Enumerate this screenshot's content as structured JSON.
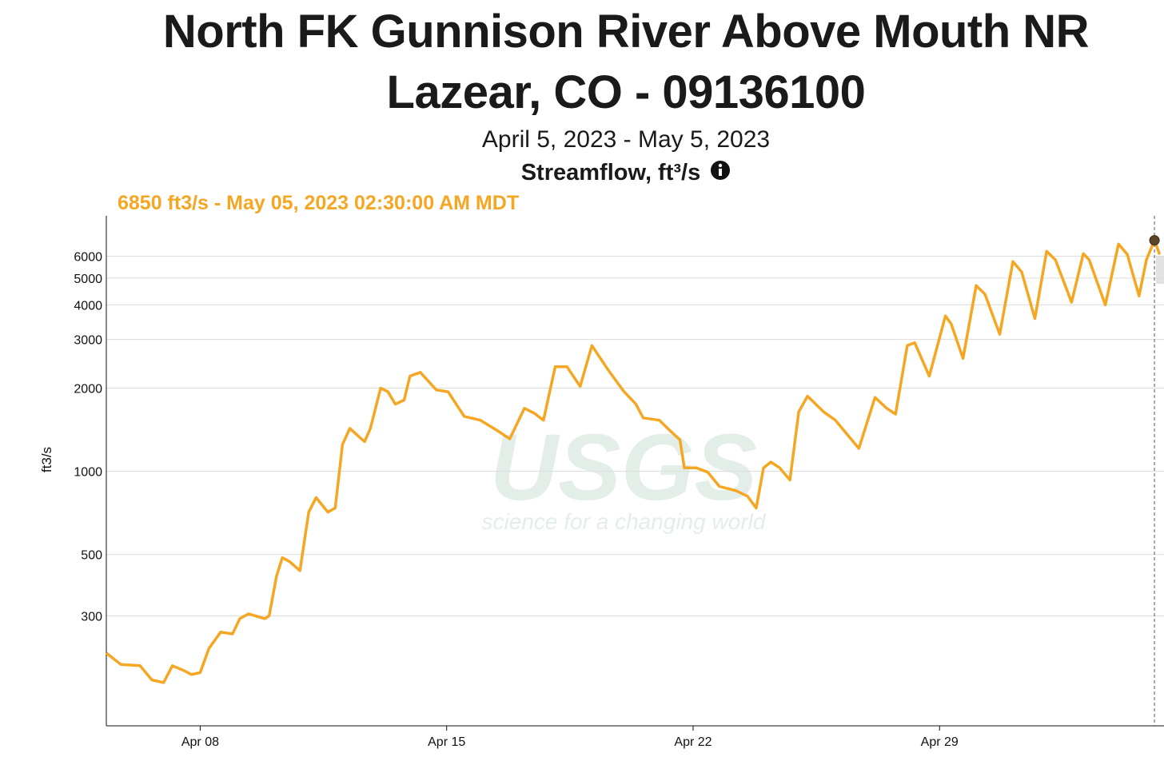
{
  "chart_data": {
    "type": "line",
    "title": "North FK Gunnison River Above Mouth NR Lazear, CO - 09136100",
    "subtitle": "April 5, 2023 - May 5, 2023",
    "parameter": "Streamflow, ft³/s",
    "y_label": "ft3/s",
    "watermark": {
      "name": "USGS",
      "tagline": "science for a changing world"
    },
    "color": "#f5a623",
    "log_scale": true,
    "grid": true,
    "x": [
      "2023-04-05T08:00",
      "2023-04-05T18:00",
      "2023-04-06T07:00",
      "2023-04-06T15:00",
      "2023-04-06T23:00",
      "2023-04-07T05:00",
      "2023-04-07T13:00",
      "2023-04-07T18:00",
      "2023-04-08T00:00",
      "2023-04-08T06:00",
      "2023-04-08T14:00",
      "2023-04-08T22:00",
      "2023-04-09T03:00",
      "2023-04-09T09:00",
      "2023-04-09T20:00",
      "2023-04-09T23:00",
      "2023-04-10T04:00",
      "2023-04-10T08:00",
      "2023-04-10T13:00",
      "2023-04-10T20:00",
      "2023-04-11T02:00",
      "2023-04-11T07:00",
      "2023-04-11T15:00",
      "2023-04-11T20:00",
      "2023-04-12T01:00",
      "2023-04-12T06:00",
      "2023-04-12T16:00",
      "2023-04-12T20:00",
      "2023-04-13T03:00",
      "2023-04-13T08:00",
      "2023-04-13T13:00",
      "2023-04-13T19:00",
      "2023-04-13T23:00",
      "2023-04-14T06:00",
      "2023-04-14T17:00",
      "2023-04-15T01:00",
      "2023-04-15T12:00",
      "2023-04-15T23:00",
      "2023-04-16T10:00",
      "2023-04-16T19:00",
      "2023-04-17T05:00",
      "2023-04-17T12:00",
      "2023-04-17T18:00",
      "2023-04-18T02:00",
      "2023-04-18T10:00",
      "2023-04-18T19:00",
      "2023-04-19T03:00",
      "2023-04-19T14:00",
      "2023-04-20T01:00",
      "2023-04-20T09:00",
      "2023-04-20T14:00",
      "2023-04-21T01:00",
      "2023-04-21T09:00",
      "2023-04-21T15:00",
      "2023-04-21T18:00",
      "2023-04-22T02:00",
      "2023-04-22T10:00",
      "2023-04-22T18:00",
      "2023-04-23T05:00",
      "2023-04-23T13:00",
      "2023-04-23T19:00",
      "2023-04-24T00:00",
      "2023-04-24T05:00",
      "2023-04-24T11:00",
      "2023-04-24T18:00",
      "2023-04-25T00:00",
      "2023-04-25T06:00",
      "2023-04-25T17:00",
      "2023-04-26T01:00",
      "2023-04-26T17:00",
      "2023-04-27T04:00",
      "2023-04-27T12:00",
      "2023-04-27T18:00",
      "2023-04-28T02:00",
      "2023-04-28T07:00",
      "2023-04-28T17:00",
      "2023-04-29T04:00",
      "2023-04-29T08:00",
      "2023-04-29T16:00",
      "2023-04-30T01:00",
      "2023-04-30T07:00",
      "2023-04-30T17:00",
      "2023-05-01T02:00",
      "2023-05-01T08:00",
      "2023-05-01T17:00",
      "2023-05-02T01:00",
      "2023-05-02T07:00",
      "2023-05-02T18:00",
      "2023-05-03T02:00",
      "2023-05-03T06:00",
      "2023-05-03T17:00",
      "2023-05-04T02:00",
      "2023-05-04T08:00",
      "2023-05-04T16:00",
      "2023-05-04T21:00",
      "2023-05-05T02:30",
      "2023-05-05T06:00"
    ],
    "values": [
      220,
      200,
      198,
      176,
      172,
      198,
      190,
      184,
      187,
      229,
      262,
      258,
      293,
      305,
      293,
      300,
      418,
      487,
      471,
      437,
      712,
      803,
      712,
      736,
      1250,
      1430,
      1280,
      1430,
      2000,
      1940,
      1750,
      1810,
      2210,
      2280,
      1970,
      1940,
      1580,
      1530,
      1410,
      1310,
      1690,
      1620,
      1530,
      2390,
      2390,
      2030,
      2850,
      2330,
      1940,
      1750,
      1560,
      1530,
      1390,
      1300,
      1030,
      1030,
      993,
      881,
      852,
      813,
      736,
      1030,
      1080,
      1030,
      930,
      1640,
      1870,
      1640,
      1530,
      1210,
      1850,
      1690,
      1610,
      2850,
      2920,
      2210,
      3650,
      3410,
      2560,
      4700,
      4370,
      3130,
      5740,
      5260,
      3570,
      6250,
      5820,
      4090,
      6130,
      5820,
      4000,
      6640,
      6090,
      4310,
      5820,
      6850,
      6090
    ],
    "xlim": [
      "2023-04-05T08:00",
      "2023-05-05T09:00"
    ],
    "xticks": [
      {
        "value": "2023-04-08T00:00",
        "label": "Apr 08"
      },
      {
        "value": "2023-04-15T00:00",
        "label": "Apr 15"
      },
      {
        "value": "2023-04-22T00:00",
        "label": "Apr 22"
      },
      {
        "value": "2023-04-29T00:00",
        "label": "Apr 29"
      }
    ],
    "ylim": [
      120,
      8400
    ],
    "yticks": [
      300,
      500,
      1000,
      2000,
      3000,
      4000,
      5000,
      6000
    ],
    "hover": {
      "x": "2023-05-05T02:30",
      "value": 6850,
      "label": "6850 ft3/s - May 05, 2023 02:30:00 AM MDT"
    }
  }
}
